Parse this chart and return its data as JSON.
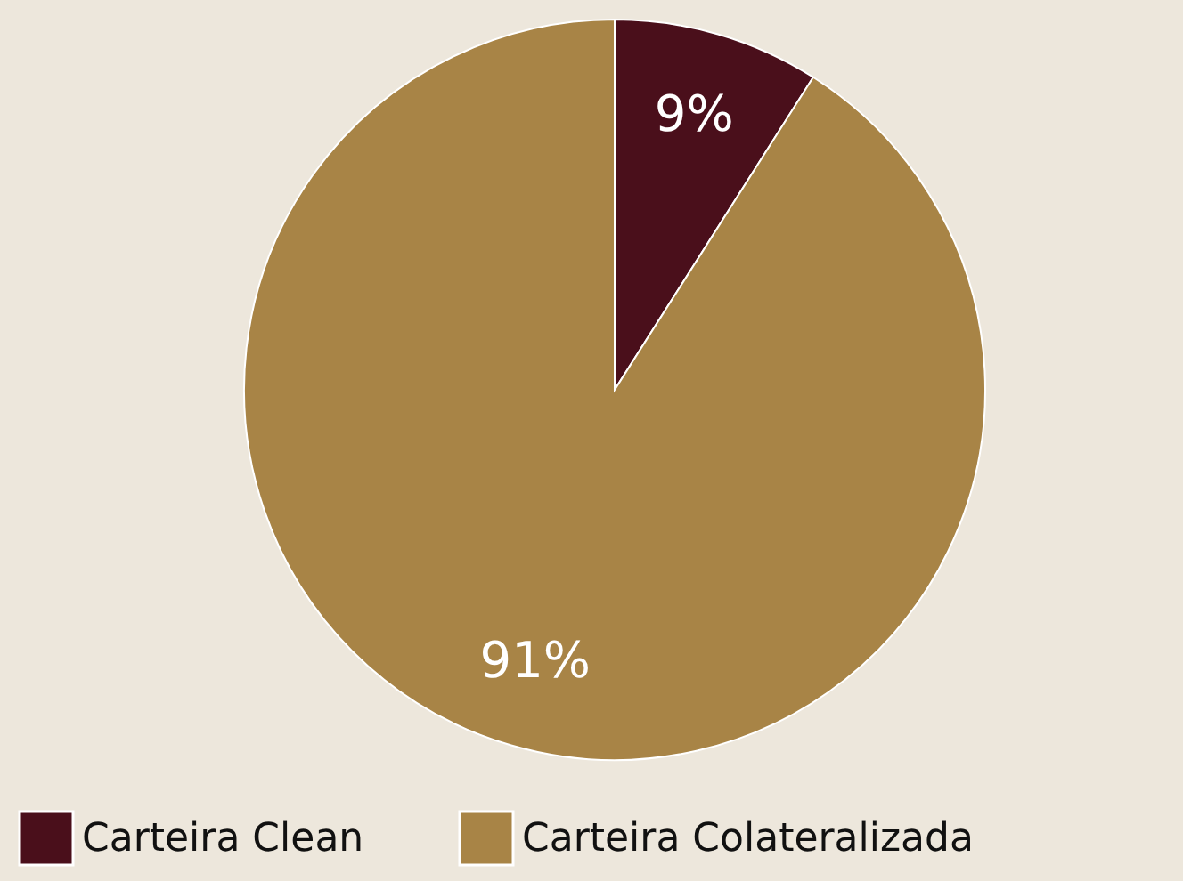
{
  "chart_data": {
    "type": "pie",
    "categories": [
      "Carteira Clean",
      "Carteira Colateralizada"
    ],
    "values": [
      9,
      91
    ],
    "colors": [
      "#4a0f1b",
      "#a88446"
    ],
    "value_labels": [
      "9%",
      "91%"
    ],
    "legend": "bottom"
  }
}
